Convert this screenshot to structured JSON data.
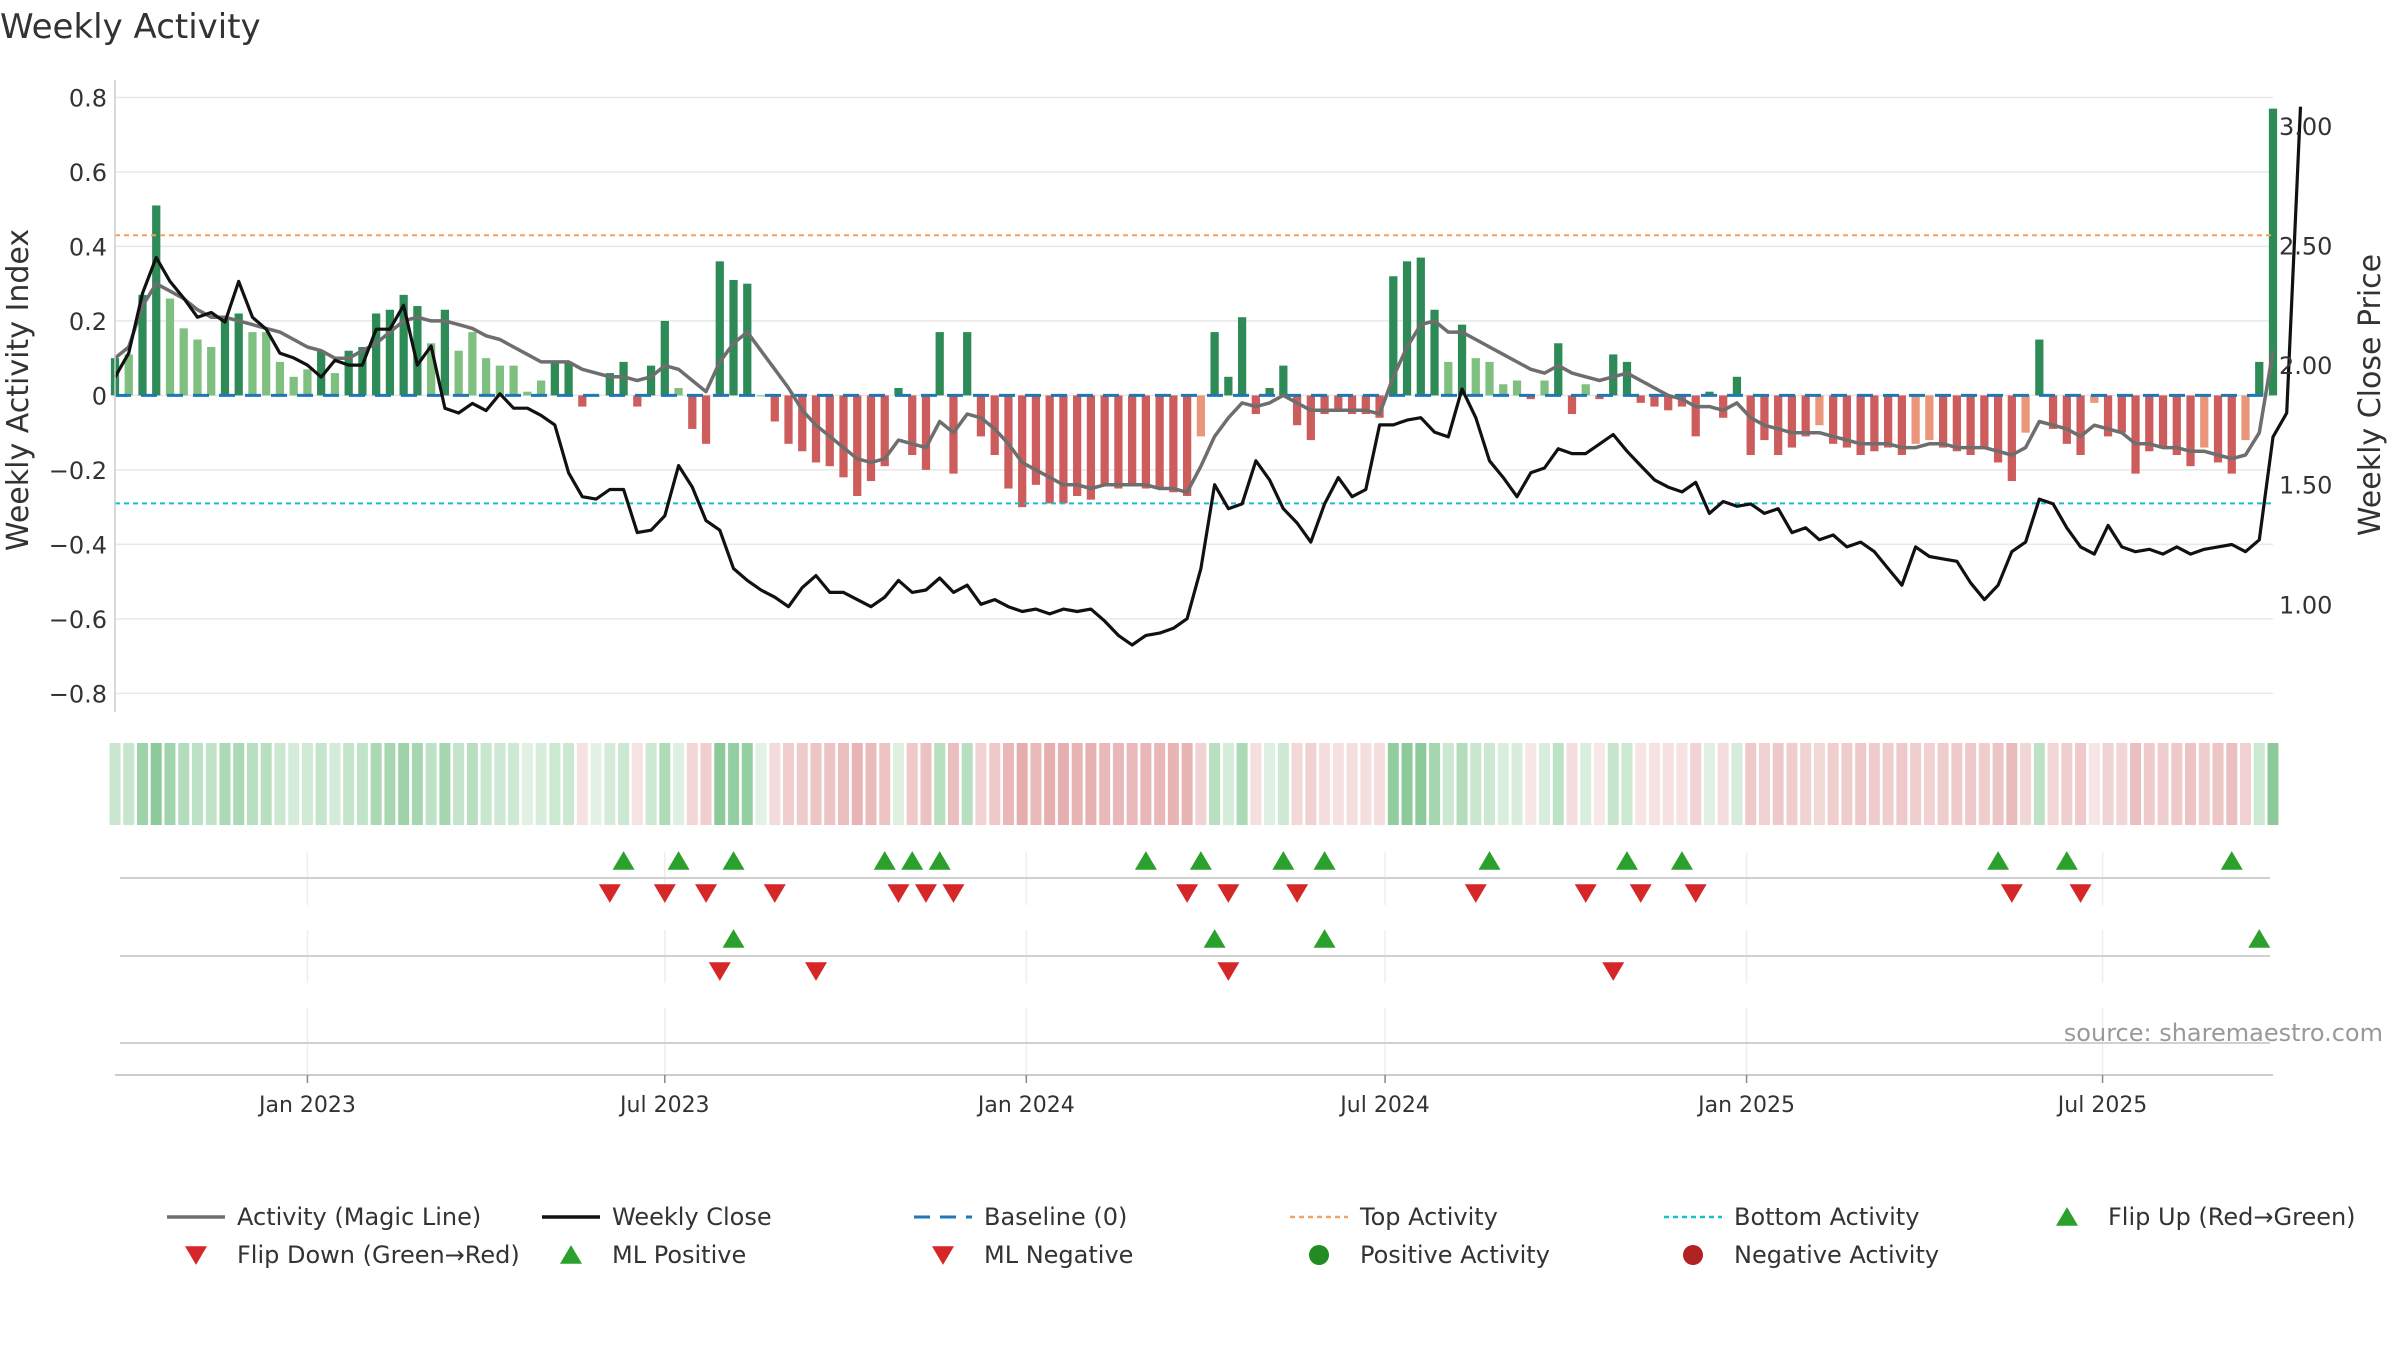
{
  "chart_data": {
    "type": "bar",
    "title": "Weekly Activity",
    "ylabel": "Weekly Activity Index",
    "y2label": "Weekly Close Price",
    "ylim": [
      -0.85,
      0.82
    ],
    "y2lim": [
      0.55,
      3.15
    ],
    "yticks": [
      0.8,
      0.6,
      0.4,
      0.2,
      0,
      -0.2,
      -0.4,
      -0.6,
      -0.8
    ],
    "ytick_labels": [
      "0.8",
      "0.6",
      "0.4",
      "0.2",
      "0",
      "−0.2",
      "−0.4",
      "−0.6",
      "−0.8"
    ],
    "y2ticks": [
      3.0,
      2.5,
      2.0,
      1.5,
      1.0
    ],
    "y2tick_labels": [
      "3.00",
      "2.50",
      "2.00",
      "1.50",
      "1.00"
    ],
    "x_range_weeks": [
      0,
      157
    ],
    "date_ticks": [
      {
        "label": "Jan 2023",
        "week": 14
      },
      {
        "label": "Jul 2023",
        "week": 40
      },
      {
        "label": "Jan 2024",
        "week": 66.3
      },
      {
        "label": "Jul 2024",
        "week": 92.4
      },
      {
        "label": "Jan 2025",
        "week": 118.7
      },
      {
        "label": "Jul 2025",
        "week": 144.6
      }
    ],
    "top_activity": 0.43,
    "bottom_activity": -0.29,
    "baseline": 0,
    "activity_weekly": [
      0.1,
      0.11,
      0.27,
      0.51,
      0.26,
      0.18,
      0.15,
      0.13,
      0.21,
      0.22,
      0.17,
      0.17,
      0.09,
      0.05,
      0.07,
      0.12,
      0.06,
      0.12,
      0.13,
      0.22,
      0.23,
      0.27,
      0.24,
      0.14,
      0.23,
      0.12,
      0.17,
      0.1,
      0.08,
      0.08,
      0.01,
      0.04,
      0.09,
      0.09,
      -0.03,
      0.0,
      0.06,
      0.09,
      -0.03,
      0.08,
      0.2,
      0.02,
      -0.09,
      -0.13,
      0.36,
      0.31,
      0.3,
      0.0,
      -0.07,
      -0.13,
      -0.15,
      -0.18,
      -0.19,
      -0.22,
      -0.27,
      -0.23,
      -0.19,
      0.02,
      -0.16,
      -0.2,
      0.17,
      -0.21,
      0.17,
      -0.11,
      -0.16,
      -0.25,
      -0.3,
      -0.24,
      -0.29,
      -0.29,
      -0.27,
      -0.28,
      -0.24,
      -0.25,
      -0.24,
      -0.25,
      -0.25,
      -0.26,
      -0.27,
      -0.11,
      0.17,
      0.05,
      0.21,
      -0.05,
      0.02,
      0.08,
      -0.08,
      -0.12,
      -0.05,
      -0.04,
      -0.05,
      -0.05,
      -0.06,
      0.32,
      0.36,
      0.37,
      0.23,
      0.09,
      0.19,
      0.1,
      0.09,
      0.03,
      0.04,
      -0.01,
      0.04,
      0.14,
      -0.05,
      0.03,
      -0.01,
      0.11,
      0.09,
      -0.02,
      -0.03,
      -0.04,
      -0.03,
      -0.11,
      0.01,
      -0.06,
      0.05,
      -0.16,
      -0.12,
      -0.16,
      -0.14,
      -0.11,
      -0.08,
      -0.13,
      -0.14,
      -0.16,
      -0.15,
      -0.14,
      -0.16,
      -0.13,
      -0.12,
      -0.14,
      -0.15,
      -0.16,
      -0.14,
      -0.18,
      -0.23,
      -0.1,
      0.15,
      -0.09,
      -0.13,
      -0.16,
      -0.02,
      -0.11,
      -0.1,
      -0.21,
      -0.15,
      -0.14,
      -0.16,
      -0.19,
      -0.14,
      -0.18,
      -0.21,
      -0.12,
      0.09,
      0.77
    ],
    "activity_magic_line": [
      0.1,
      0.13,
      0.24,
      0.3,
      0.28,
      0.26,
      0.23,
      0.21,
      0.21,
      0.2,
      0.19,
      0.18,
      0.17,
      0.15,
      0.13,
      0.12,
      0.1,
      0.1,
      0.12,
      0.14,
      0.17,
      0.2,
      0.21,
      0.2,
      0.2,
      0.19,
      0.18,
      0.16,
      0.15,
      0.13,
      0.11,
      0.09,
      0.09,
      0.09,
      0.07,
      0.06,
      0.05,
      0.05,
      0.04,
      0.05,
      0.08,
      0.07,
      0.04,
      0.01,
      0.09,
      0.14,
      0.17,
      0.12,
      0.07,
      0.02,
      -0.04,
      -0.08,
      -0.11,
      -0.14,
      -0.17,
      -0.18,
      -0.17,
      -0.12,
      -0.13,
      -0.14,
      -0.07,
      -0.1,
      -0.05,
      -0.06,
      -0.09,
      -0.13,
      -0.18,
      -0.2,
      -0.22,
      -0.24,
      -0.24,
      -0.25,
      -0.24,
      -0.24,
      -0.24,
      -0.24,
      -0.25,
      -0.25,
      -0.26,
      -0.19,
      -0.11,
      -0.06,
      -0.02,
      -0.03,
      -0.02,
      0.0,
      -0.02,
      -0.04,
      -0.04,
      -0.04,
      -0.04,
      -0.04,
      -0.05,
      0.05,
      0.13,
      0.19,
      0.2,
      0.17,
      0.17,
      0.15,
      0.13,
      0.11,
      0.09,
      0.07,
      0.06,
      0.08,
      0.06,
      0.05,
      0.04,
      0.05,
      0.06,
      0.04,
      0.02,
      0.0,
      -0.01,
      -0.03,
      -0.03,
      -0.04,
      -0.02,
      -0.06,
      -0.08,
      -0.09,
      -0.1,
      -0.1,
      -0.1,
      -0.11,
      -0.12,
      -0.13,
      -0.13,
      -0.13,
      -0.14,
      -0.14,
      -0.13,
      -0.13,
      -0.14,
      -0.14,
      -0.14,
      -0.15,
      -0.16,
      -0.14,
      -0.07,
      -0.08,
      -0.09,
      -0.11,
      -0.08,
      -0.09,
      -0.1,
      -0.13,
      -0.13,
      -0.14,
      -0.14,
      -0.15,
      -0.15,
      -0.16,
      -0.17,
      -0.16,
      -0.1,
      0.12
    ],
    "weekly_close": [
      1.95,
      2.05,
      2.3,
      2.45,
      2.35,
      2.28,
      2.2,
      2.22,
      2.18,
      2.35,
      2.2,
      2.15,
      2.05,
      2.03,
      2.0,
      1.95,
      2.02,
      2.0,
      2.0,
      2.15,
      2.15,
      2.25,
      2.0,
      2.08,
      1.82,
      1.8,
      1.84,
      1.81,
      1.88,
      1.82,
      1.82,
      1.79,
      1.75,
      1.55,
      1.45,
      1.44,
      1.48,
      1.48,
      1.3,
      1.31,
      1.37,
      1.58,
      1.49,
      1.35,
      1.31,
      1.15,
      1.1,
      1.06,
      1.03,
      0.99,
      1.07,
      1.12,
      1.05,
      1.05,
      1.02,
      0.99,
      1.03,
      1.1,
      1.05,
      1.06,
      1.11,
      1.05,
      1.08,
      1.0,
      1.02,
      0.99,
      0.97,
      0.98,
      0.96,
      0.98,
      0.97,
      0.98,
      0.93,
      0.87,
      0.83,
      0.87,
      0.88,
      0.9,
      0.94,
      1.15,
      1.5,
      1.4,
      1.42,
      1.6,
      1.52,
      1.4,
      1.34,
      1.26,
      1.42,
      1.53,
      1.45,
      1.48,
      1.75,
      1.75,
      1.77,
      1.78,
      1.72,
      1.7,
      1.9,
      1.78,
      1.6,
      1.53,
      1.45,
      1.55,
      1.57,
      1.65,
      1.63,
      1.63,
      1.67,
      1.71,
      1.64,
      1.58,
      1.52,
      1.49,
      1.47,
      1.51,
      1.38,
      1.43,
      1.41,
      1.42,
      1.38,
      1.4,
      1.3,
      1.32,
      1.27,
      1.29,
      1.24,
      1.26,
      1.22,
      1.15,
      1.08,
      1.24,
      1.2,
      1.19,
      1.18,
      1.09,
      1.02,
      1.08,
      1.22,
      1.26,
      1.44,
      1.42,
      1.32,
      1.24,
      1.21,
      1.33,
      1.24,
      1.22,
      1.23,
      1.21,
      1.24,
      1.21,
      1.23,
      1.24,
      1.25,
      1.22,
      1.27,
      1.7,
      1.8,
      3.08
    ],
    "flip_up_weeks": [
      37,
      41,
      45,
      56,
      58,
      60,
      75,
      79,
      85,
      88,
      100,
      110,
      114,
      137,
      142,
      154
    ],
    "flip_down_weeks": [
      36,
      40,
      43,
      48,
      57,
      59,
      61,
      78,
      81,
      86,
      99,
      107,
      111,
      115,
      138,
      143
    ],
    "ml_positive_weeks": [
      45,
      80,
      88,
      156
    ],
    "ml_negative_weeks": [
      44,
      51,
      81,
      109
    ],
    "source": "source: sharemaestro.com",
    "colors": {
      "pos_strong": "#2e8b57",
      "pos_light": "#7fbf7f",
      "neg_strong": "#cd5c5c",
      "neg_light": "#e9967a",
      "magic_line": "#6e6e6e",
      "close": "#111111",
      "baseline": "#1f77b4",
      "top": "#f4a261",
      "bottom": "#17becf",
      "flip_up": "#2ca02c",
      "flip_down": "#d62728",
      "pos_dot": "#228b22",
      "neg_dot": "#b22222",
      "grid": "#e8e8e8"
    },
    "legend": [
      "Activity (Magic Line)",
      "Weekly Close",
      "Baseline (0)",
      "Top Activity",
      "Bottom Activity",
      "Flip Up (Red→Green)",
      "Flip Down (Green→Red)",
      "ML Positive",
      "ML Negative",
      "Positive Activity",
      "Negative Activity"
    ]
  }
}
